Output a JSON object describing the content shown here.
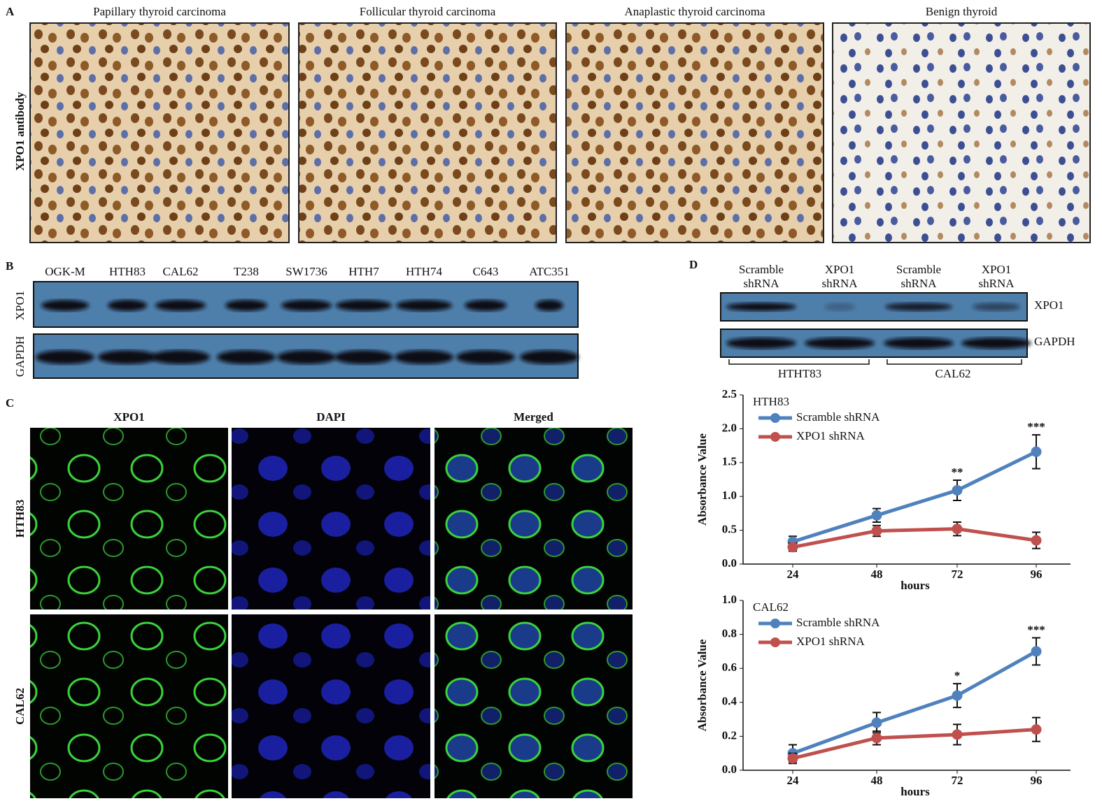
{
  "panels": {
    "a": {
      "label": "A",
      "ylabel": "XPO1 antibody",
      "titles": [
        "Papillary  thyroid carcinoma",
        "Follicular  thyroid carcinoma",
        "Anaplastic thyroid carcinoma",
        "Benign thyroid"
      ]
    },
    "b": {
      "label": "B",
      "lanes": [
        "OGK-M",
        "HTH83",
        "CAL62",
        "T238",
        "SW1736",
        "HTH7",
        "HTH74",
        "C643",
        "ATC351"
      ],
      "rows": [
        "XPO1",
        "GAPDH"
      ]
    },
    "c": {
      "label": "C",
      "columns": [
        "XPO1",
        "DAPI",
        "Merged"
      ],
      "rows": [
        "HTH83",
        "CAL62"
      ]
    },
    "d": {
      "label": "D",
      "lanes": [
        [
          "Scramble",
          "shRNA"
        ],
        [
          "XPO1",
          "shRNA"
        ],
        [
          "Scramble",
          "shRNA"
        ],
        [
          "XPO1",
          "shRNA"
        ]
      ],
      "rows": [
        "XPO1",
        "GAPDH"
      ],
      "groups": [
        "HTHT83",
        "CAL62"
      ]
    }
  },
  "chart_data": [
    {
      "type": "line",
      "title": "HTH83",
      "xlabel": "hours",
      "ylabel": "Absorbance  Value",
      "categories": [
        "24",
        "48",
        "72",
        "96"
      ],
      "series": [
        {
          "name": "Scramble shRNA",
          "color": "#4f81bd",
          "values": [
            0.33,
            0.72,
            1.09,
            1.66
          ],
          "errors": [
            0.08,
            0.1,
            0.15,
            0.25
          ]
        },
        {
          "name": "XPO1 shRNA",
          "color": "#c0504d",
          "values": [
            0.25,
            0.49,
            0.52,
            0.35
          ],
          "errors": [
            0.06,
            0.08,
            0.1,
            0.12
          ]
        }
      ],
      "significance": [
        null,
        null,
        "**",
        "***"
      ],
      "ylim": [
        0,
        2.5
      ],
      "yticks": [
        {
          "value": 0,
          "label": "0.0"
        },
        {
          "value": 0.5,
          "label": "0.5"
        },
        {
          "value": 1,
          "label": "1.0"
        },
        {
          "value": 1.5,
          "label": "1.5"
        },
        {
          "value": 2,
          "label": "2.0"
        },
        {
          "value": 2.5,
          "label": "2.5"
        }
      ]
    },
    {
      "type": "line",
      "title": "CAL62",
      "xlabel": "hours",
      "ylabel": "Absorbance  Value",
      "categories": [
        "24",
        "48",
        "72",
        "96"
      ],
      "series": [
        {
          "name": "Scramble shRNA",
          "color": "#4f81bd",
          "values": [
            0.1,
            0.28,
            0.44,
            0.7
          ],
          "errors": [
            0.05,
            0.06,
            0.07,
            0.08
          ]
        },
        {
          "name": "XPO1 shRNA",
          "color": "#c0504d",
          "values": [
            0.07,
            0.19,
            0.21,
            0.24
          ],
          "errors": [
            0.03,
            0.04,
            0.06,
            0.07
          ]
        }
      ],
      "significance": [
        null,
        null,
        "*",
        "***"
      ],
      "ylim": [
        0,
        1
      ],
      "yticks": [
        {
          "value": 0,
          "label": "0.0"
        },
        {
          "value": 0.2,
          "label": "0.2"
        },
        {
          "value": 0.4,
          "label": "0.4"
        },
        {
          "value": 0.6,
          "label": "0.6"
        },
        {
          "value": 0.8,
          "label": "0.8"
        },
        {
          "value": 1,
          "label": "1.0"
        }
      ]
    }
  ]
}
